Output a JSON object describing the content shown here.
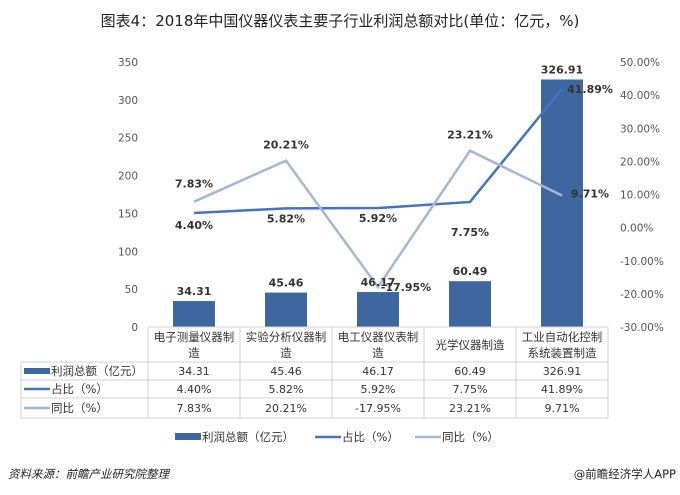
{
  "title": "图表4：2018年中国仪器仪表主要子行业利润总额对比(单位：亿元，%)",
  "footer": {
    "source": "资料来源：前瞻产业研究院整理",
    "brand": "@前瞻经济学人APP"
  },
  "watermark": "前瞻产业研究院",
  "chart_data": {
    "type": "bar+line",
    "categories": [
      "电子测量仪器制造",
      "实验分析仪器制造",
      "电工仪器仪表制造",
      "光学仪器制造",
      "工业自动化控制系统装置制造"
    ],
    "category_lines": [
      [
        "电子测量仪器制",
        "造"
      ],
      [
        "实验分析仪器制",
        "造"
      ],
      [
        "电工仪器仪表制",
        "造"
      ],
      [
        "光学仪器制造",
        ""
      ],
      [
        "工业自动化控制",
        "系统装置制造"
      ]
    ],
    "series": [
      {
        "name": "利润总额（亿元）",
        "type": "bar",
        "axis": "left",
        "color": "#3e67a0",
        "values": [
          34.31,
          45.46,
          46.17,
          60.49,
          326.91
        ],
        "labels": [
          "34.31",
          "45.46",
          "46.17",
          "60.49",
          "326.91"
        ]
      },
      {
        "name": "占比（%）",
        "type": "line",
        "axis": "right",
        "color": "#4472c4",
        "values": [
          4.4,
          5.82,
          5.92,
          7.75,
          41.89
        ],
        "labels": [
          "4.40%",
          "5.82%",
          "5.92%",
          "7.75%",
          "41.89%"
        ]
      },
      {
        "name": "同比（%）",
        "type": "line",
        "axis": "right",
        "color": "#a5b6d6",
        "values": [
          7.83,
          20.21,
          -17.95,
          23.21,
          9.71
        ],
        "labels": [
          "7.83%",
          "20.21%",
          "-17.95%",
          "23.21%",
          "9.71%"
        ]
      }
    ],
    "left_axis": {
      "min": 0,
      "max": 350,
      "ticks": [
        "0",
        "50",
        "100",
        "150",
        "200",
        "250",
        "300",
        "350"
      ]
    },
    "right_axis": {
      "min": -30,
      "max": 50,
      "ticks": [
        "-30.00%",
        "-20.00%",
        "-10.00%",
        "0.00%",
        "10.00%",
        "20.00%",
        "30.00%",
        "40.00%",
        "50.00%"
      ]
    },
    "grid": false,
    "legend": "bottom",
    "data_table": true
  }
}
